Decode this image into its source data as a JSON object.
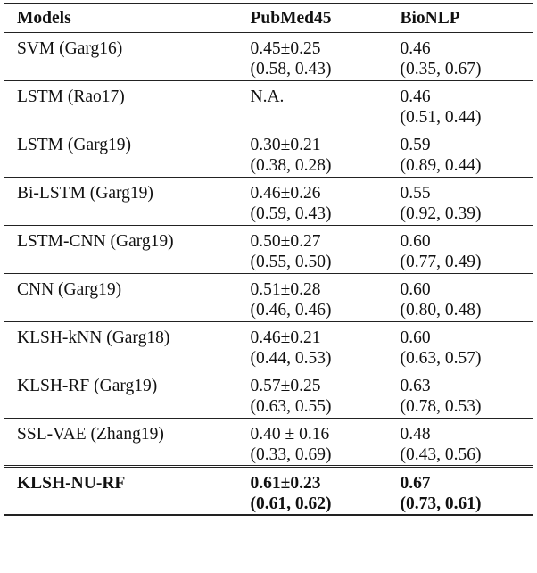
{
  "table": {
    "header": [
      "Models",
      "PubMed45",
      "BioNLP"
    ],
    "rows": [
      [
        "SVM (Garg16)",
        [
          "0.45±0.25",
          "(0.58, 0.43)"
        ],
        [
          "0.46",
          "(0.35, 0.67)"
        ]
      ],
      [
        "LSTM (Rao17)",
        [
          "N.A."
        ],
        [
          "0.46",
          "(0.51, 0.44)"
        ]
      ],
      [
        "LSTM (Garg19)",
        [
          "0.30±0.21",
          "(0.38, 0.28)"
        ],
        [
          "0.59",
          "(0.89, 0.44)"
        ]
      ],
      [
        "Bi-LSTM (Garg19)",
        [
          "0.46±0.26",
          "(0.59, 0.43)"
        ],
        [
          "0.55",
          "(0.92, 0.39)"
        ]
      ],
      [
        "LSTM-CNN (Garg19)",
        [
          "0.50±0.27",
          "(0.55, 0.50)"
        ],
        [
          "0.60",
          "(0.77, 0.49)"
        ]
      ],
      [
        "CNN (Garg19)",
        [
          "0.51±0.28",
          "(0.46, 0.46)"
        ],
        [
          "0.60",
          "(0.80, 0.48)"
        ]
      ],
      [
        "KLSH-kNN (Garg18)",
        [
          "0.46±0.21",
          "(0.44, 0.53)"
        ],
        [
          "0.60",
          "(0.63, 0.57)"
        ]
      ],
      [
        "KLSH-RF (Garg19)",
        [
          "0.57±0.25",
          "(0.63, 0.55)"
        ],
        [
          "0.63",
          "(0.78, 0.53)"
        ]
      ],
      [
        "SSL-VAE (Zhang19)",
        [
          "0.40 ± 0.16",
          "(0.33, 0.69)"
        ],
        [
          "0.48",
          "(0.43, 0.56)"
        ]
      ],
      [
        "KLSH-NU-RF",
        [
          "0.61±0.23",
          "(0.61, 0.62)"
        ],
        [
          "0.67",
          "(0.73, 0.61)"
        ]
      ]
    ]
  }
}
